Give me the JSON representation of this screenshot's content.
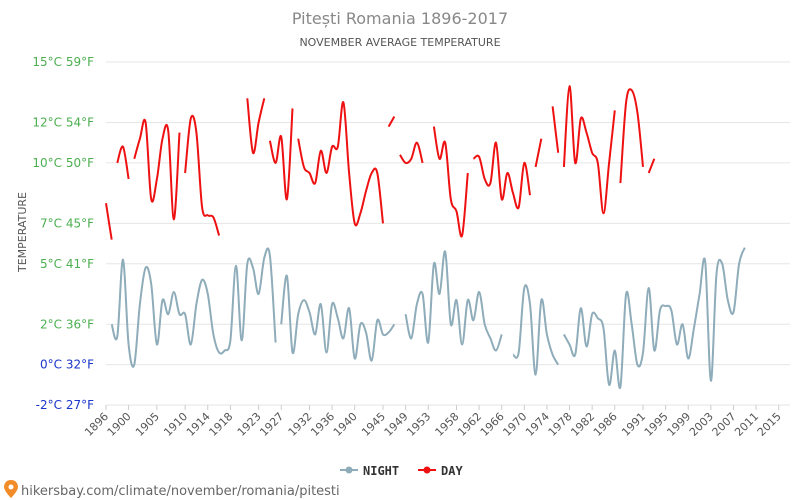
{
  "chart_data": {
    "type": "line",
    "title": "Pitești Romania 1896-2017",
    "subtitle": "NOVEMBER AVERAGE TEMPERATURE",
    "ylabel": "TEMPERATURE",
    "xlim": [
      1896,
      2017
    ],
    "ylim": [
      -2,
      15
    ],
    "y_ticks": [
      {
        "value": 15,
        "label": "15°C 59°F",
        "color": "#4caf50"
      },
      {
        "value": 12,
        "label": "12°C 54°F",
        "color": "#4caf50"
      },
      {
        "value": 10,
        "label": "10°C 50°F",
        "color": "#4caf50"
      },
      {
        "value": 7,
        "label": "7°C 45°F",
        "color": "#4caf50"
      },
      {
        "value": 5,
        "label": "5°C 41°F",
        "color": "#4caf50"
      },
      {
        "value": 2,
        "label": "2°C 36°F",
        "color": "#4caf50"
      },
      {
        "value": 0,
        "label": "0°C 32°F",
        "color": "#1a35c9"
      },
      {
        "value": -2,
        "label": "-2°C 27°F",
        "color": "#1a35c9"
      }
    ],
    "x_ticks": [
      "1896",
      "1900",
      "1905",
      "1910",
      "1914",
      "1918",
      "1923",
      "1927",
      "1932",
      "1936",
      "1940",
      "1945",
      "1949",
      "1953",
      "1958",
      "1962",
      "1966",
      "1970",
      "1974",
      "1978",
      "1982",
      "1986",
      "1991",
      "1995",
      "1999",
      "2003",
      "2007",
      "2011",
      "2015"
    ],
    "grid": true,
    "legend_position": "bottom",
    "series": [
      {
        "name": "NIGHT",
        "color": "#8eacb9",
        "points": [
          [
            1897,
            2.0
          ],
          [
            1898,
            1.4
          ],
          [
            1899,
            5.2
          ],
          [
            1900,
            1.0
          ],
          [
            1901,
            0.0
          ],
          [
            1902,
            3.0
          ],
          [
            1903,
            4.8
          ],
          [
            1904,
            4.0
          ],
          [
            1905,
            1.0
          ],
          [
            1906,
            3.2
          ],
          [
            1907,
            2.5
          ],
          [
            1908,
            3.6
          ],
          [
            1909,
            2.5
          ],
          [
            1910,
            2.5
          ],
          [
            1911,
            1.0
          ],
          [
            1912,
            3.0
          ],
          [
            1913,
            4.2
          ],
          [
            1914,
            3.5
          ],
          [
            1915,
            1.5
          ],
          [
            1916,
            0.6
          ],
          [
            1917,
            0.7
          ],
          [
            1918,
            1.2
          ],
          [
            1919,
            4.9
          ],
          [
            1920,
            1.2
          ],
          [
            1921,
            5.0
          ],
          [
            1922,
            4.8
          ],
          [
            1923,
            3.5
          ],
          [
            1924,
            5.3
          ],
          [
            1925,
            5.4
          ],
          [
            1926,
            1.1
          ],
          null,
          [
            1927,
            2.0
          ],
          [
            1928,
            4.4
          ],
          [
            1929,
            0.6
          ],
          [
            1930,
            2.5
          ],
          [
            1931,
            3.2
          ],
          [
            1932,
            2.6
          ],
          [
            1933,
            1.5
          ],
          [
            1934,
            3.0
          ],
          [
            1935,
            0.6
          ],
          [
            1936,
            3.0
          ],
          [
            1937,
            2.3
          ],
          [
            1938,
            1.3
          ],
          [
            1939,
            2.8
          ],
          [
            1940,
            0.3
          ],
          [
            1941,
            2.0
          ],
          [
            1942,
            1.6
          ],
          [
            1943,
            0.2
          ],
          [
            1944,
            2.2
          ],
          [
            1945,
            1.5
          ],
          [
            1946,
            1.6
          ],
          [
            1947,
            2.0
          ],
          null,
          [
            1949,
            2.5
          ],
          [
            1950,
            1.3
          ],
          [
            1951,
            3.0
          ],
          [
            1952,
            3.5
          ],
          [
            1953,
            1.1
          ],
          [
            1954,
            5.0
          ],
          [
            1955,
            3.5
          ],
          [
            1956,
            5.6
          ],
          [
            1957,
            2.0
          ],
          [
            1958,
            3.2
          ],
          [
            1959,
            1.0
          ],
          [
            1960,
            3.2
          ],
          [
            1961,
            2.2
          ],
          [
            1962,
            3.6
          ],
          [
            1963,
            2.0
          ],
          [
            1964,
            1.3
          ],
          [
            1965,
            0.7
          ],
          [
            1966,
            1.5
          ],
          null,
          [
            1968,
            0.5
          ],
          [
            1969,
            0.6
          ],
          [
            1970,
            3.8
          ],
          [
            1971,
            3.0
          ],
          [
            1972,
            -0.5
          ],
          [
            1973,
            3.2
          ],
          [
            1974,
            1.5
          ],
          [
            1975,
            0.5
          ],
          [
            1976,
            0.0
          ],
          null,
          [
            1977,
            1.5
          ],
          [
            1978,
            1.0
          ],
          [
            1979,
            0.5
          ],
          [
            1980,
            2.8
          ],
          [
            1981,
            0.9
          ],
          [
            1982,
            2.5
          ],
          [
            1983,
            2.3
          ],
          [
            1984,
            1.8
          ],
          [
            1985,
            -1.0
          ],
          [
            1986,
            0.7
          ],
          [
            1987,
            -1.1
          ],
          [
            1988,
            3.5
          ],
          [
            1989,
            2.0
          ],
          [
            1990,
            0.0
          ],
          [
            1991,
            0.6
          ],
          [
            1992,
            3.8
          ],
          [
            1993,
            0.7
          ],
          [
            1994,
            2.7
          ],
          [
            1995,
            2.9
          ],
          [
            1996,
            2.7
          ],
          [
            1997,
            1.0
          ],
          [
            1998,
            2.0
          ],
          [
            1999,
            0.3
          ],
          [
            2000,
            1.8
          ],
          [
            2001,
            3.5
          ],
          [
            2002,
            5.1
          ],
          [
            2003,
            -0.8
          ],
          [
            2004,
            4.5
          ],
          [
            2005,
            5.0
          ],
          [
            2006,
            3.2
          ],
          [
            2007,
            2.6
          ],
          [
            2008,
            5.0
          ],
          [
            2009,
            5.8
          ]
        ]
      },
      {
        "name": "DAY",
        "color": "#ee1111",
        "points": [
          [
            1896,
            8.0
          ],
          [
            1897,
            6.2
          ],
          null,
          [
            1898,
            10.0
          ],
          [
            1899,
            10.8
          ],
          [
            1900,
            9.2
          ],
          null,
          [
            1901,
            10.2
          ],
          [
            1902,
            11.2
          ],
          [
            1903,
            12.0
          ],
          [
            1904,
            8.2
          ],
          [
            1905,
            9.2
          ],
          [
            1906,
            11.2
          ],
          [
            1907,
            11.6
          ],
          [
            1908,
            7.2
          ],
          [
            1909,
            11.5
          ],
          null,
          [
            1910,
            9.5
          ],
          [
            1911,
            12.2
          ],
          [
            1912,
            11.5
          ],
          [
            1913,
            7.8
          ],
          [
            1914,
            7.4
          ],
          [
            1915,
            7.3
          ],
          [
            1916,
            6.4
          ],
          null,
          [
            1921,
            13.2
          ],
          [
            1922,
            10.5
          ],
          [
            1923,
            12.0
          ],
          [
            1924,
            13.2
          ],
          null,
          [
            1925,
            11.1
          ],
          [
            1926,
            10.0
          ],
          [
            1927,
            11.3
          ],
          [
            1928,
            8.2
          ],
          [
            1929,
            12.7
          ],
          null,
          [
            1930,
            11.2
          ],
          [
            1931,
            9.8
          ],
          [
            1932,
            9.5
          ],
          [
            1933,
            9.0
          ],
          [
            1934,
            10.6
          ],
          [
            1935,
            9.5
          ],
          [
            1936,
            10.8
          ],
          [
            1937,
            10.8
          ],
          [
            1938,
            13.0
          ],
          [
            1939,
            9.5
          ],
          [
            1940,
            7.0
          ],
          [
            1941,
            7.5
          ],
          [
            1942,
            8.6
          ],
          [
            1943,
            9.5
          ],
          [
            1944,
            9.5
          ],
          [
            1945,
            7.0
          ],
          null,
          [
            1946,
            11.8
          ],
          [
            1947,
            12.3
          ],
          null,
          [
            1948,
            10.4
          ],
          [
            1949,
            10.0
          ],
          [
            1950,
            10.2
          ],
          [
            1951,
            11.0
          ],
          [
            1952,
            10.0
          ],
          null,
          [
            1954,
            11.8
          ],
          [
            1955,
            10.2
          ],
          [
            1956,
            11.0
          ],
          [
            1957,
            8.2
          ],
          [
            1958,
            7.6
          ],
          [
            1959,
            6.4
          ],
          [
            1960,
            9.5
          ],
          null,
          [
            1961,
            10.2
          ],
          [
            1962,
            10.3
          ],
          [
            1963,
            9.2
          ],
          [
            1964,
            9.0
          ],
          [
            1965,
            11.0
          ],
          [
            1966,
            8.2
          ],
          [
            1967,
            9.5
          ],
          [
            1968,
            8.5
          ],
          [
            1969,
            7.8
          ],
          [
            1970,
            10.0
          ],
          [
            1971,
            8.4
          ],
          null,
          [
            1972,
            9.8
          ],
          [
            1973,
            11.2
          ],
          null,
          [
            1975,
            12.8
          ],
          [
            1976,
            10.5
          ],
          null,
          [
            1977,
            9.8
          ],
          [
            1978,
            13.8
          ],
          [
            1979,
            10.0
          ],
          [
            1980,
            12.2
          ],
          [
            1981,
            11.5
          ],
          [
            1982,
            10.5
          ],
          [
            1983,
            10.0
          ],
          [
            1984,
            7.5
          ],
          [
            1985,
            10.0
          ],
          [
            1986,
            12.6
          ],
          null,
          [
            1987,
            9.0
          ],
          [
            1988,
            13.0
          ],
          [
            1989,
            13.6
          ],
          [
            1990,
            12.5
          ],
          [
            1991,
            9.8
          ],
          null,
          [
            1992,
            9.5
          ],
          [
            1993,
            10.2
          ]
        ]
      }
    ]
  },
  "legend": [
    {
      "label": "NIGHT",
      "color": "#8eacb9"
    },
    {
      "label": "DAY",
      "color": "#ee1111"
    }
  ],
  "credit": "hikersbay.com/climate/november/romania/pitesti"
}
